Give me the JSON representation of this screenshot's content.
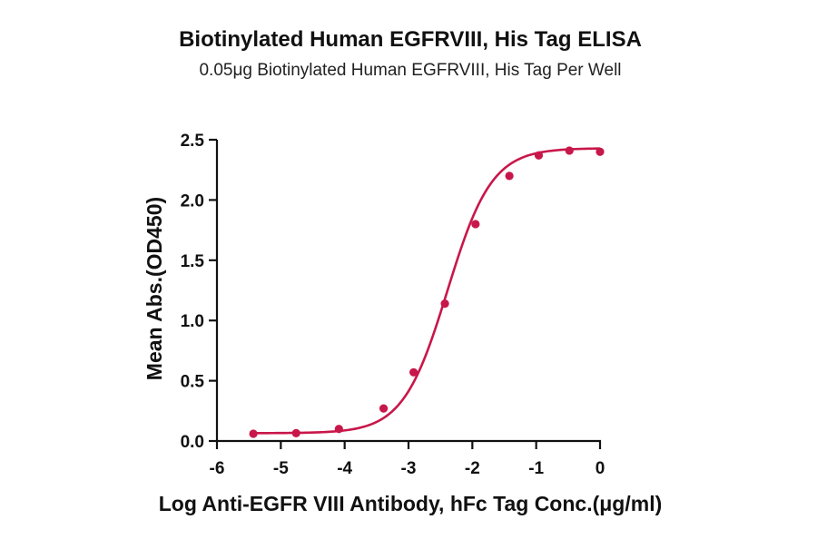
{
  "chart_data": {
    "type": "scatter",
    "title": "Biotinylated Human EGFRVIII, His Tag ELISA",
    "subtitle": "0.05μg Biotinylated Human EGFRVIII, His Tag Per Well",
    "xlabel": "Log Anti-EGFR VIII Antibody, hFc Tag Conc.(μg/ml)",
    "ylabel": "Mean Abs.(OD450)",
    "xlim": [
      -6,
      0
    ],
    "ylim": [
      0,
      2.5
    ],
    "xticks": [
      -6,
      -5,
      -4,
      -3,
      -2,
      -1,
      0
    ],
    "yticks": [
      0.0,
      0.5,
      1.0,
      1.5,
      2.0,
      2.5
    ],
    "xtick_labels": [
      "-6",
      "-5",
      "-4",
      "-3",
      "-2",
      "-1",
      "0"
    ],
    "ytick_labels": [
      "0.0",
      "0.5",
      "1.0",
      "1.5",
      "2.0",
      "2.5"
    ],
    "series": [
      {
        "color": "#c8174a",
        "x": [
          -5.43,
          -4.76,
          -4.09,
          -3.39,
          -2.92,
          -2.43,
          -1.95,
          -1.42,
          -0.96,
          -0.48,
          0.0
        ],
        "y": [
          0.06,
          0.065,
          0.1,
          0.27,
          0.57,
          1.14,
          1.8,
          2.2,
          2.37,
          2.41,
          2.4
        ]
      }
    ],
    "fit_curve": {
      "bottom": 0.065,
      "top": 2.43,
      "logEC50": -2.39,
      "hill_slope": 1.25
    },
    "grid": false,
    "legend": "none"
  }
}
